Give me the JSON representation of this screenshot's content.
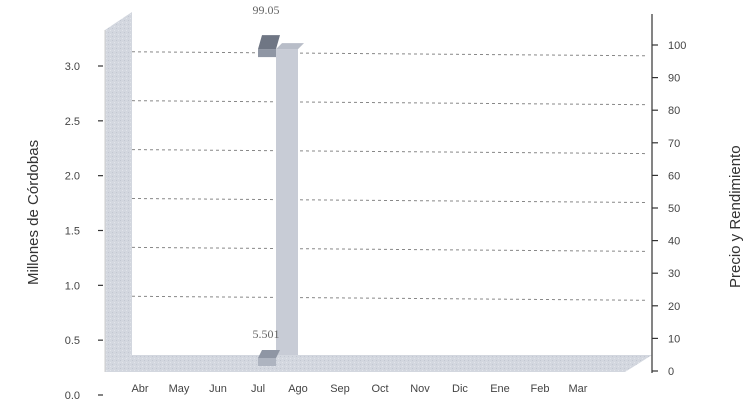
{
  "chart_data": {
    "type": "bar",
    "title": "",
    "categories": [
      "Abr",
      "May",
      "Jun",
      "Jul",
      "Ago",
      "Sep",
      "Oct",
      "Nov",
      "Dic",
      "Ene",
      "Feb",
      "Mar"
    ],
    "series": [
      {
        "axis": "left",
        "values": [
          null,
          null,
          null,
          0.06,
          null,
          null,
          null,
          null,
          null,
          null,
          null,
          null
        ]
      },
      {
        "axis": "right",
        "values": [
          null,
          null,
          null,
          99.05,
          null,
          null,
          null,
          null,
          null,
          null,
          null,
          null
        ]
      }
    ],
    "data_labels": [
      {
        "category": "Jul",
        "text": "99.05"
      },
      {
        "category": "Jul",
        "text": "5.501"
      }
    ],
    "y_left": {
      "label": "Millones de Córdobas",
      "ylim": [
        0,
        3.3
      ],
      "ticks": [
        "0.0",
        "0.5",
        "1.0",
        "1.5",
        "2.0",
        "2.5",
        "3.0"
      ]
    },
    "y_right": {
      "label": "Precio y Rendimiento",
      "ylim": [
        0,
        110
      ],
      "ticks": [
        "0",
        "10",
        "20",
        "30",
        "40",
        "50",
        "60",
        "70",
        "80",
        "90",
        "100"
      ]
    },
    "grid": true,
    "style": "3d",
    "colors": {
      "wall": "#d6d9e0",
      "floor": "#c9ccd4",
      "bar_front": "#aeb4c0",
      "bar_side": "#8f96a4",
      "bar_top": "#6f7684",
      "line_bar": "#c8ccd6",
      "grid": "#888888"
    }
  }
}
